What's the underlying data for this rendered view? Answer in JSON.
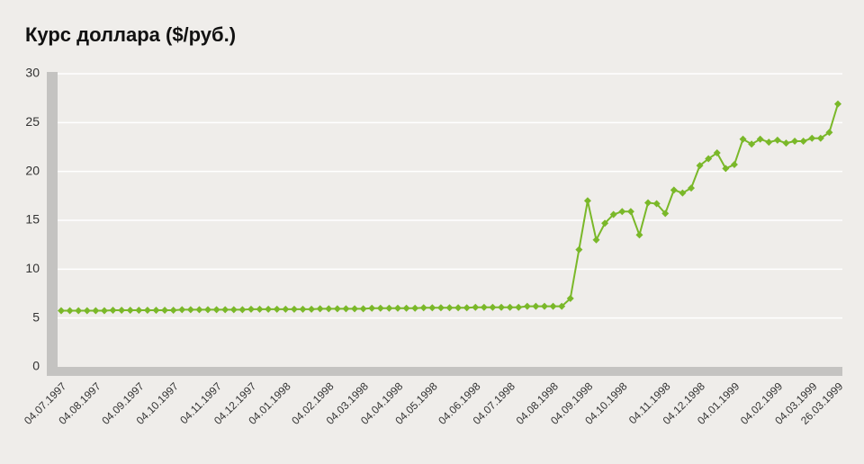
{
  "chart_data": {
    "type": "line",
    "title": "Курс доллара ($/руб.)",
    "categories": [
      "04.07.1997",
      null,
      null,
      null,
      "04.08.1997",
      null,
      null,
      null,
      null,
      "04.09.1997",
      null,
      null,
      null,
      "04.10.1997",
      null,
      null,
      null,
      null,
      "04.11.1997",
      null,
      null,
      null,
      "04.12.1997",
      null,
      null,
      null,
      "04.01.1998",
      null,
      null,
      null,
      null,
      "04.02.1998",
      null,
      null,
      null,
      "04.03.1998",
      null,
      null,
      null,
      "04.04.1998",
      null,
      null,
      null,
      "04.05.1998",
      null,
      null,
      null,
      null,
      "04.06.1998",
      null,
      null,
      null,
      "04.07.1998",
      null,
      null,
      null,
      null,
      "04.08.1998",
      null,
      null,
      null,
      "04.09.1998",
      null,
      null,
      null,
      "04.10.1998",
      null,
      null,
      null,
      null,
      "04.11.1998",
      null,
      null,
      null,
      "04.12.1998",
      null,
      null,
      null,
      "04.01.1999",
      null,
      null,
      null,
      null,
      "04.02.1999",
      null,
      null,
      null,
      "04.03.1999",
      null,
      null,
      "26.03.1999"
    ],
    "values": [
      5.75,
      5.75,
      5.75,
      5.75,
      5.75,
      5.75,
      5.8,
      5.8,
      5.8,
      5.8,
      5.8,
      5.8,
      5.8,
      5.8,
      5.85,
      5.85,
      5.85,
      5.85,
      5.85,
      5.85,
      5.85,
      5.85,
      5.9,
      5.9,
      5.9,
      5.9,
      5.9,
      5.9,
      5.9,
      5.9,
      5.95,
      5.95,
      5.95,
      5.95,
      5.95,
      5.95,
      6.0,
      6.0,
      6.0,
      6.0,
      6.0,
      6.0,
      6.05,
      6.05,
      6.05,
      6.05,
      6.05,
      6.05,
      6.1,
      6.1,
      6.1,
      6.1,
      6.1,
      6.1,
      6.2,
      6.2,
      6.2,
      6.2,
      6.2,
      7.0,
      12,
      17,
      13,
      14.7,
      15.6,
      15.9,
      15.9,
      13.5,
      16.8,
      16.7,
      15.7,
      18.1,
      17.8,
      18.3,
      20.6,
      21.3,
      21.9,
      20.3,
      20.7,
      23.3,
      22.8,
      23.3,
      23.0,
      23.2,
      22.9,
      23.1,
      23.1,
      23.4,
      23.4,
      24.0,
      26.9
    ],
    "color": "#7ab829",
    "ylim": [
      0,
      30
    ],
    "yticks": [
      0,
      5,
      10,
      15,
      20,
      25,
      30
    ],
    "grid": true
  }
}
